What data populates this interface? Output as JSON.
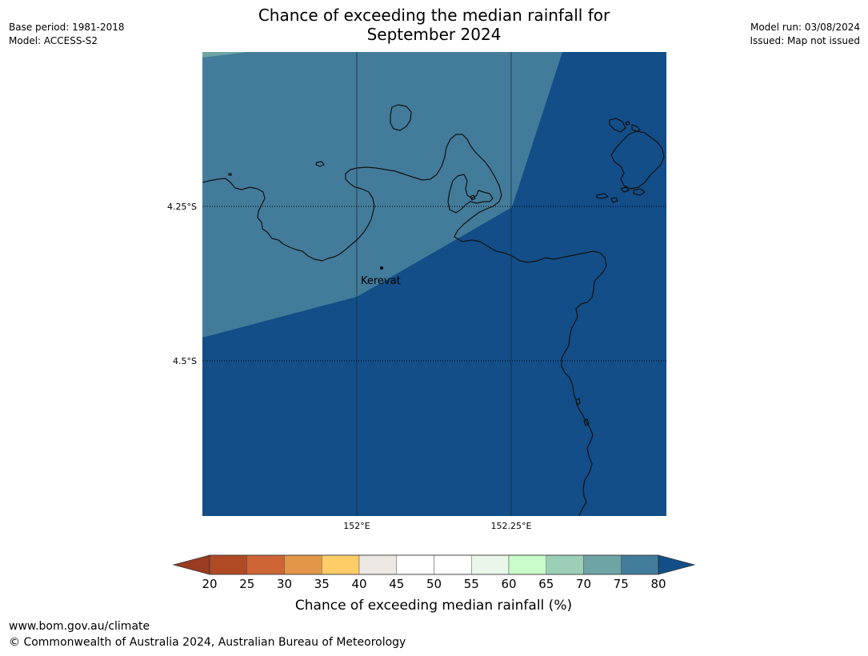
{
  "title": {
    "line1": "Chance of exceeding the median rainfall for",
    "line2": "September 2024"
  },
  "meta_left": {
    "base_period": "Base period: 1981-2018",
    "model": "Model: ACCESS-S2"
  },
  "meta_right": {
    "model_run": "Model run: 03/08/2024",
    "issued": "Issued: Map not issued"
  },
  "map": {
    "lat_labels": [
      "4.25°S",
      "4.5°S"
    ],
    "lon_labels": [
      "152°E",
      "152.25°E"
    ],
    "place_label": "Kerevat",
    "colors": {
      "band_65_70": "#6fa4a5",
      "band_70_75": "#437c9a",
      "band_above_80": "#134e88",
      "coastline": "#111111"
    }
  },
  "colorbar": {
    "ticks": [
      "20",
      "25",
      "30",
      "35",
      "40",
      "45",
      "50",
      "55",
      "60",
      "65",
      "70",
      "75",
      "80"
    ],
    "label": "Chance of exceeding median rainfall (%)",
    "under_color": "#9a3b22",
    "over_color": "#134e88",
    "band_colors": [
      "#b04a25",
      "#cf6434",
      "#e39548",
      "#fdcd68",
      "#ede8e4",
      "#ffffff",
      "#ffffff",
      "#e9f6e9",
      "#c9fbc9",
      "#9ccfb8",
      "#6fa4a5",
      "#437c9a"
    ]
  },
  "footer": {
    "url": "www.bom.gov.au/climate",
    "copyright": "© Commonwealth of Australia 2024, Australian Bureau of Meteorology"
  }
}
